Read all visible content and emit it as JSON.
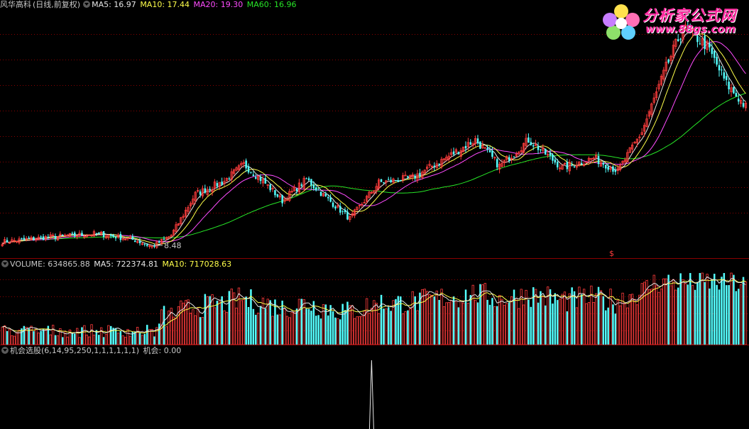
{
  "price_panel": {
    "stock_name": "风华高科",
    "period": "(日线,前复权)",
    "ma5": "MA5: 16.97",
    "ma10": "MA10: 17.44",
    "ma20": "MA20: 19.30",
    "ma60": "MA60: 16.96",
    "low_label": "8.48",
    "signal_marker": "$"
  },
  "volume_panel": {
    "volume": "VOLUME: 634865.88",
    "ma5": "MA5: 722374.81",
    "ma10": "MA10: 717028.63"
  },
  "indicator_panel": {
    "name": "机会选股(6,14,95,250,1,1,1,1,1,1)",
    "value": "机会: 0.00"
  },
  "logo": {
    "text": "分析家公式网",
    "url": "www.88gs.com"
  },
  "colors": {
    "up": "#ff3c3c",
    "down": "#54ffff",
    "ma5": "#e6e6e6",
    "ma10": "#ffff4a",
    "ma20": "#ff4cff",
    "ma60": "#27e627",
    "grid": "#8a0000"
  },
  "chart_data": [
    {
      "type": "candlestick",
      "title": "风华高科(日线,前复权)",
      "series_names": [
        "MA5",
        "MA10",
        "MA20",
        "MA60"
      ],
      "anchors": [
        {
          "bar": 0,
          "close": 8.9
        },
        {
          "bar": 20,
          "close": 9.2
        },
        {
          "bar": 40,
          "close": 9.4
        },
        {
          "bar": 55,
          "close": 9.0
        },
        {
          "bar": 62,
          "close": 8.6
        },
        {
          "bar": 70,
          "close": 9.3
        },
        {
          "bar": 80,
          "close": 11.8
        },
        {
          "bar": 92,
          "close": 12.6
        },
        {
          "bar": 100,
          "close": 13.6
        },
        {
          "bar": 108,
          "close": 12.6
        },
        {
          "bar": 116,
          "close": 11.4
        },
        {
          "bar": 126,
          "close": 12.7
        },
        {
          "bar": 134,
          "close": 11.6
        },
        {
          "bar": 144,
          "close": 10.3
        },
        {
          "bar": 156,
          "close": 12.5
        },
        {
          "bar": 170,
          "close": 12.8
        },
        {
          "bar": 186,
          "close": 14.2
        },
        {
          "bar": 196,
          "close": 15.1
        },
        {
          "bar": 206,
          "close": 13.5
        },
        {
          "bar": 218,
          "close": 15.1
        },
        {
          "bar": 232,
          "close": 13.4
        },
        {
          "bar": 245,
          "close": 14.0
        },
        {
          "bar": 255,
          "close": 13.2
        },
        {
          "bar": 265,
          "close": 15.6
        },
        {
          "bar": 275,
          "close": 19.5
        },
        {
          "bar": 282,
          "close": 21.9
        },
        {
          "bar": 286,
          "close": 21.5
        },
        {
          "bar": 292,
          "close": 20.8
        },
        {
          "bar": 300,
          "close": 18.5
        },
        {
          "bar": 308,
          "close": 17.1
        }
      ],
      "low_point": {
        "bar": 62,
        "value": 8.48
      },
      "ylim": [
        8.0,
        23.0
      ]
    },
    {
      "type": "bar",
      "title": "VOLUME",
      "series_names": [
        "MA5",
        "MA10"
      ],
      "last_value": 634865.88,
      "ma5": 722374.81,
      "ma10": 717028.63
    },
    {
      "type": "line",
      "title": "机会选股",
      "series_names": [
        "机会"
      ],
      "last_value": 0.0,
      "spike_bar": 153
    }
  ]
}
